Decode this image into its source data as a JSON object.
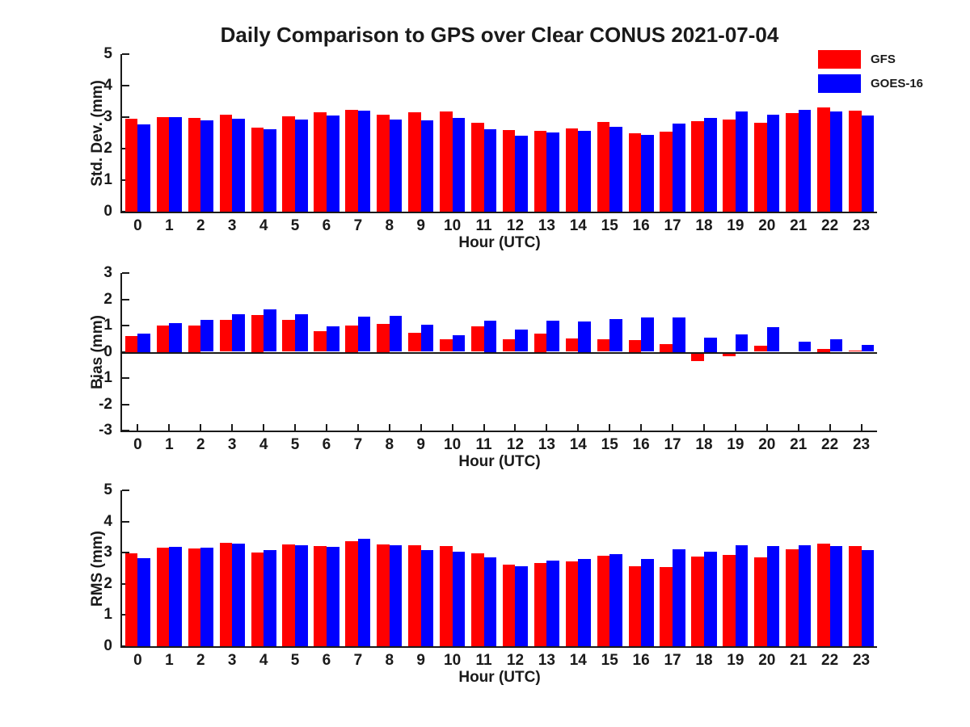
{
  "title": "Daily Comparison to GPS over Clear CONUS 2021-07-04",
  "legend": {
    "items": [
      {
        "label": "GFS",
        "color": "#ff0000"
      },
      {
        "label": "GOES-16",
        "color": "#0000ff"
      }
    ]
  },
  "chart_data": [
    {
      "type": "bar",
      "id": "std-dev",
      "ylabel": "Std. Dev. (mm)",
      "xlabel": "Hour (UTC)",
      "ylim": [
        0,
        5
      ],
      "yticks": [
        0,
        1,
        2,
        3,
        4,
        5
      ],
      "categories": [
        0,
        1,
        2,
        3,
        4,
        5,
        6,
        7,
        8,
        9,
        10,
        11,
        12,
        13,
        14,
        15,
        16,
        17,
        18,
        19,
        20,
        21,
        22,
        23
      ],
      "series": [
        {
          "name": "GFS",
          "color": "#ff0000",
          "values": [
            2.95,
            3.0,
            2.97,
            3.08,
            2.66,
            3.03,
            3.15,
            3.23,
            3.08,
            3.16,
            3.18,
            2.82,
            2.58,
            2.56,
            2.65,
            2.85,
            2.5,
            2.53,
            2.86,
            2.93,
            2.82,
            3.12,
            3.3,
            3.21
          ]
        },
        {
          "name": "GOES-16",
          "color": "#0000ff",
          "values": [
            2.78,
            3.0,
            2.9,
            2.96,
            2.61,
            2.92,
            3.04,
            3.2,
            2.92,
            2.9,
            2.98,
            2.61,
            2.42,
            2.51,
            2.57,
            2.7,
            2.44,
            2.8,
            2.98,
            3.17,
            3.07,
            3.22,
            3.19,
            3.04
          ]
        }
      ]
    },
    {
      "type": "bar",
      "id": "bias",
      "ylabel": "Bias (mm)",
      "xlabel": "Hour (UTC)",
      "ylim": [
        -3,
        3
      ],
      "yticks": [
        -3,
        -2,
        -1,
        0,
        1,
        2,
        3
      ],
      "categories": [
        0,
        1,
        2,
        3,
        4,
        5,
        6,
        7,
        8,
        9,
        10,
        11,
        12,
        13,
        14,
        15,
        16,
        17,
        18,
        19,
        20,
        21,
        22,
        23
      ],
      "series": [
        {
          "name": "GFS",
          "color": "#ff0000",
          "values": [
            0.6,
            1.0,
            1.0,
            1.23,
            1.4,
            1.23,
            0.78,
            1.0,
            1.05,
            0.72,
            0.48,
            0.97,
            0.47,
            0.7,
            0.52,
            0.47,
            0.45,
            0.3,
            -0.3,
            -0.1,
            0.23,
            0.0,
            0.1,
            0.04
          ]
        },
        {
          "name": "GOES-16",
          "color": "#0000ff",
          "values": [
            0.7,
            1.1,
            1.21,
            1.43,
            1.63,
            1.43,
            0.97,
            1.33,
            1.38,
            1.02,
            0.63,
            1.2,
            0.86,
            1.17,
            1.15,
            1.26,
            1.31,
            1.3,
            0.55,
            0.67,
            0.93,
            0.38,
            0.47,
            0.27
          ]
        }
      ]
    },
    {
      "type": "bar",
      "id": "rms",
      "ylabel": "RMS (mm)",
      "xlabel": "Hour (UTC)",
      "ylim": [
        0,
        5
      ],
      "yticks": [
        0,
        1,
        2,
        3,
        4,
        5
      ],
      "categories": [
        0,
        1,
        2,
        3,
        4,
        5,
        6,
        7,
        8,
        9,
        10,
        11,
        12,
        13,
        14,
        15,
        16,
        17,
        18,
        19,
        20,
        21,
        22,
        23
      ],
      "series": [
        {
          "name": "GFS",
          "color": "#ff0000",
          "values": [
            2.98,
            3.15,
            3.13,
            3.32,
            3.01,
            3.27,
            3.22,
            3.38,
            3.26,
            3.25,
            3.2,
            2.97,
            2.62,
            2.68,
            2.72,
            2.9,
            2.56,
            2.55,
            2.87,
            2.93,
            2.85,
            3.12,
            3.3,
            3.21
          ]
        },
        {
          "name": "GOES-16",
          "color": "#0000ff",
          "values": [
            2.83,
            3.19,
            3.15,
            3.28,
            3.08,
            3.25,
            3.18,
            3.45,
            3.25,
            3.09,
            3.03,
            2.86,
            2.57,
            2.74,
            2.8,
            2.96,
            2.79,
            3.1,
            3.04,
            3.25,
            3.22,
            3.25,
            3.22,
            3.07
          ]
        }
      ]
    }
  ]
}
